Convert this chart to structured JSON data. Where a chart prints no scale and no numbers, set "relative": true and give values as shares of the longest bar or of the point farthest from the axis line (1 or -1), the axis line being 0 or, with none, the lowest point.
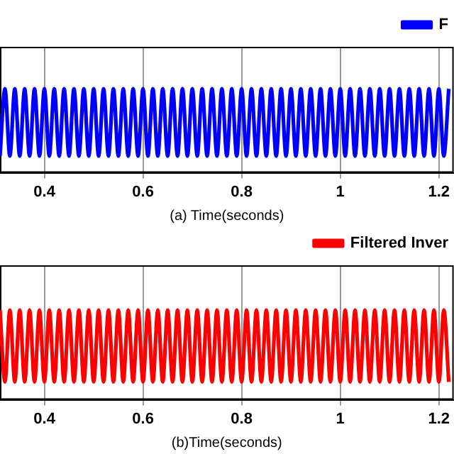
{
  "chart_data": [
    {
      "type": "line",
      "xlabel": "(a) Time(seconds)",
      "relative": true,
      "grid": "x",
      "legend": "top right",
      "line_style": "solid",
      "marker": "none",
      "x": [
        0.31,
        0.32,
        0.33,
        0.34,
        0.35,
        0.36,
        0.37,
        0.38,
        0.39,
        0.4,
        0.41,
        0.42,
        0.43,
        0.44,
        0.45,
        0.46,
        0.47,
        0.48,
        0.49,
        0.5,
        0.51,
        0.52,
        0.53,
        0.54,
        0.55,
        0.56,
        0.57,
        0.58,
        0.59,
        0.6,
        0.61,
        0.62,
        0.63,
        0.64,
        0.65,
        0.66,
        0.67,
        0.68,
        0.69,
        0.7,
        0.71,
        0.72,
        0.73,
        0.74,
        0.75,
        0.76,
        0.77,
        0.78,
        0.79,
        0.8,
        0.81,
        0.82,
        0.83,
        0.84,
        0.85,
        0.86,
        0.87,
        0.88,
        0.89,
        0.9,
        0.91,
        0.92,
        0.93,
        0.94,
        0.95,
        0.96,
        0.97,
        0.98,
        0.99,
        1.0,
        1.01,
        1.02,
        1.03,
        1.04,
        1.05,
        1.06,
        1.07,
        1.08,
        1.09,
        1.1,
        1.11,
        1.12,
        1.13,
        1.14,
        1.15,
        1.16,
        1.17,
        1.18,
        1.19,
        1.2,
        1.21,
        1.22
      ],
      "xlim": [
        0.31,
        1.23
      ],
      "xticks": [
        0.4,
        0.6,
        0.8,
        1,
        1.2
      ],
      "series": [
        {
          "name": "F",
          "color": "#0000ff",
          "values": [
            0.2,
            1,
            0.2,
            1,
            0.2,
            1,
            0.2,
            1,
            0.2,
            1,
            0.2,
            1,
            0.2,
            1,
            0.2,
            1,
            0.2,
            1,
            0.2,
            1,
            0.2,
            1,
            0.2,
            1,
            0.2,
            1,
            0.2,
            1,
            0.2,
            1,
            0.2,
            1,
            0.2,
            1,
            0.2,
            1,
            0.2,
            1,
            0.2,
            1,
            0.2,
            1,
            0.2,
            1,
            0.2,
            1,
            0.2,
            1,
            0.2,
            1,
            0.2,
            1,
            0.2,
            1,
            0.2,
            1,
            0.2,
            1,
            0.2,
            1,
            0.2,
            1,
            0.2,
            1,
            0.2,
            1,
            0.2,
            1,
            0.2,
            1,
            0.2,
            1,
            0.2,
            1,
            0.2,
            1,
            0.2,
            1,
            0.2,
            1,
            0.2,
            1,
            0.2,
            1,
            0.2,
            1,
            0.2,
            1,
            0.2,
            1,
            0.2,
            1
          ]
        }
      ]
    },
    {
      "type": "line",
      "xlabel": "(b)Time(seconds)",
      "relative": true,
      "grid": "x",
      "legend": "top right",
      "line_style": "solid",
      "marker": "none",
      "x": [
        0.31,
        0.32,
        0.33,
        0.34,
        0.35,
        0.36,
        0.37,
        0.38,
        0.39,
        0.4,
        0.41,
        0.42,
        0.43,
        0.44,
        0.45,
        0.46,
        0.47,
        0.48,
        0.49,
        0.5,
        0.51,
        0.52,
        0.53,
        0.54,
        0.55,
        0.56,
        0.57,
        0.58,
        0.59,
        0.6,
        0.61,
        0.62,
        0.63,
        0.64,
        0.65,
        0.66,
        0.67,
        0.68,
        0.69,
        0.7,
        0.71,
        0.72,
        0.73,
        0.74,
        0.75,
        0.76,
        0.77,
        0.78,
        0.79,
        0.8,
        0.81,
        0.82,
        0.83,
        0.84,
        0.85,
        0.86,
        0.87,
        0.88,
        0.89,
        0.9,
        0.91,
        0.92,
        0.93,
        0.94,
        0.95,
        0.96,
        0.97,
        0.98,
        0.99,
        1.0,
        1.01,
        1.02,
        1.03,
        1.04,
        1.05,
        1.06,
        1.07,
        1.08,
        1.09,
        1.1,
        1.11,
        1.12,
        1.13,
        1.14,
        1.15,
        1.16,
        1.17,
        1.18,
        1.19,
        1.2,
        1.21,
        1.22
      ],
      "xlim": [
        0.31,
        1.23
      ],
      "xticks": [
        0.4,
        0.6,
        0.8,
        1,
        1.2
      ],
      "series": [
        {
          "name": "Filtered Inver",
          "color": "#ff0000",
          "values": [
            1,
            0.2,
            1,
            0.2,
            1,
            0.2,
            1,
            0.2,
            1,
            0.2,
            1,
            0.2,
            1,
            0.2,
            1,
            0.2,
            1,
            0.2,
            1,
            0.2,
            1,
            0.2,
            1,
            0.2,
            1,
            0.2,
            1,
            0.2,
            1,
            0.2,
            1,
            0.2,
            1,
            0.2,
            1,
            0.2,
            1,
            0.2,
            1,
            0.2,
            1,
            0.2,
            1,
            0.2,
            1,
            0.2,
            1,
            0.2,
            1,
            0.2,
            1,
            0.2,
            1,
            0.2,
            1,
            0.2,
            1,
            0.2,
            1,
            0.2,
            1,
            0.2,
            1,
            0.2,
            1,
            0.2,
            1,
            0.2,
            1,
            0.2,
            1,
            0.2,
            1,
            0.2,
            1,
            0.2,
            1,
            0.2,
            1,
            0.2,
            1,
            0.2,
            1,
            0.2,
            1,
            0.2,
            1,
            0.2,
            1,
            0.2,
            1,
            0.2
          ]
        }
      ]
    }
  ]
}
